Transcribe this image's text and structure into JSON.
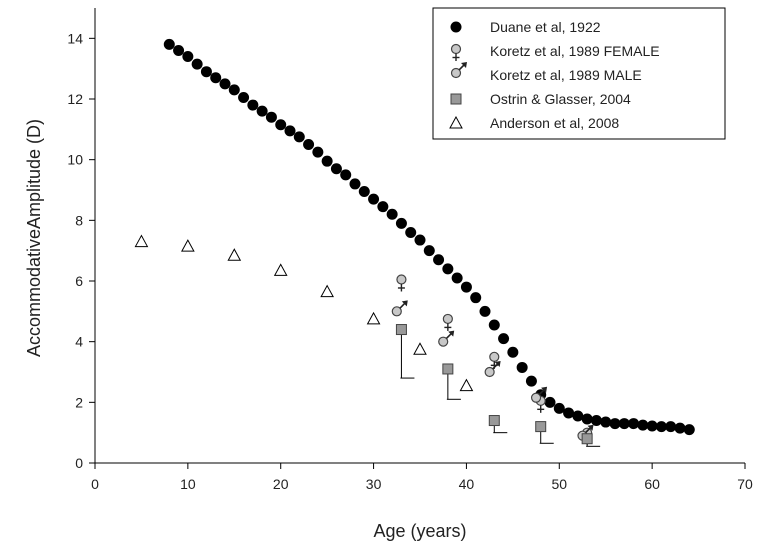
{
  "chart_data": {
    "type": "scatter",
    "xlabel": "Age (years)",
    "ylabel": "AccommodativeAmplitude (D)",
    "xlim": [
      0,
      70
    ],
    "ylim": [
      0,
      15
    ],
    "xticks": [
      0,
      10,
      20,
      30,
      40,
      50,
      60,
      70
    ],
    "yticks": [
      0,
      2,
      4,
      6,
      8,
      10,
      12,
      14
    ],
    "grid": false,
    "legend_position": "top-right",
    "colors": {
      "filled": "#000000",
      "grey_fill": "#999999",
      "grey_edge": "#444444",
      "marker_edge": "#000000"
    },
    "series": [
      {
        "name": "Duane et al, 1922",
        "marker": "filled-circle",
        "x": [
          8,
          9,
          10,
          11,
          12,
          13,
          14,
          15,
          16,
          17,
          18,
          19,
          20,
          21,
          22,
          23,
          24,
          25,
          26,
          27,
          28,
          29,
          30,
          31,
          32,
          33,
          34,
          35,
          36,
          37,
          38,
          39,
          40,
          41,
          42,
          43,
          44,
          45,
          46,
          47,
          48,
          49,
          50,
          51,
          52,
          53,
          54,
          55,
          56,
          57,
          58,
          59,
          60,
          61,
          62,
          63,
          64
        ],
        "y": [
          13.8,
          13.6,
          13.4,
          13.15,
          12.9,
          12.7,
          12.5,
          12.3,
          12.05,
          11.8,
          11.6,
          11.4,
          11.15,
          10.95,
          10.75,
          10.5,
          10.25,
          9.95,
          9.7,
          9.5,
          9.2,
          8.95,
          8.7,
          8.45,
          8.2,
          7.9,
          7.6,
          7.35,
          7.0,
          6.7,
          6.4,
          6.1,
          5.8,
          5.45,
          5.0,
          4.55,
          4.1,
          3.65,
          3.15,
          2.7,
          2.25,
          2.0,
          1.8,
          1.65,
          1.55,
          1.45,
          1.4,
          1.35,
          1.3,
          1.3,
          1.3,
          1.25,
          1.22,
          1.2,
          1.2,
          1.15,
          1.1
        ]
      },
      {
        "name": "Koretz et al, 1989 FEMALE",
        "marker": "female-symbol",
        "x": [
          33,
          38,
          43,
          48,
          53
        ],
        "y": [
          6.05,
          4.75,
          3.5,
          2.05,
          1.0
        ]
      },
      {
        "name": "Koretz et al, 1989 MALE",
        "marker": "male-symbol",
        "x": [
          32.5,
          37.5,
          42.5,
          47.5,
          52.5
        ],
        "y": [
          5.0,
          4.0,
          3.0,
          2.15,
          0.9
        ]
      },
      {
        "name": "Ostrin & Glasser, 2004",
        "marker": "grey-square",
        "x": [
          33,
          38,
          43,
          48,
          53
        ],
        "y": [
          4.4,
          3.1,
          1.4,
          1.2,
          0.8
        ],
        "err_low": [
          2.8,
          2.1,
          1.0,
          0.65,
          0.55
        ]
      },
      {
        "name": "Anderson et al, 2008",
        "marker": "open-triangle",
        "x": [
          5,
          10,
          15,
          20,
          25,
          30,
          35,
          40
        ],
        "y": [
          7.3,
          7.15,
          6.85,
          6.35,
          5.65,
          4.75,
          3.75,
          2.55
        ]
      }
    ]
  }
}
